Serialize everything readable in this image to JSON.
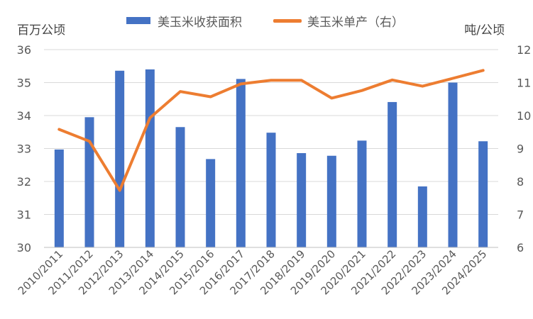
{
  "chart_data": {
    "type": "bar+line",
    "categories": [
      "2010/2011",
      "2011/2012",
      "2012/2013",
      "2013/2014",
      "2014/2015",
      "2015/2016",
      "2016/2017",
      "2017/2018",
      "2018/2019",
      "2019/2020",
      "2020/2021",
      "2021/2022",
      "2022/2023",
      "2023/2024",
      "2024/2025"
    ],
    "series": [
      {
        "name": "美玉米收获面积",
        "type": "bar",
        "axis": "left",
        "color": "#4472C4",
        "values": [
          32.97,
          33.95,
          35.36,
          35.4,
          33.65,
          32.68,
          35.11,
          33.48,
          32.86,
          32.78,
          33.24,
          34.41,
          31.85,
          35.0,
          33.22
        ]
      },
      {
        "name": "美玉米单产（右）",
        "type": "line",
        "axis": "right",
        "color": "#ED7D31",
        "values": [
          9.58,
          9.22,
          7.73,
          9.93,
          10.73,
          10.57,
          10.96,
          11.07,
          11.07,
          10.53,
          10.76,
          11.08,
          10.89,
          11.13,
          11.37
        ]
      }
    ],
    "left_axis": {
      "label": "百万公顷",
      "ylim": [
        30,
        36
      ],
      "ticks": [
        "30",
        "31",
        "32",
        "33",
        "34",
        "35",
        "36"
      ]
    },
    "right_axis": {
      "label": "吨/公顷",
      "ylim": [
        6,
        12
      ],
      "ticks": [
        "6",
        "7",
        "8",
        "9",
        "10",
        "11",
        "12"
      ]
    },
    "grid": true,
    "legend_position": "top"
  }
}
